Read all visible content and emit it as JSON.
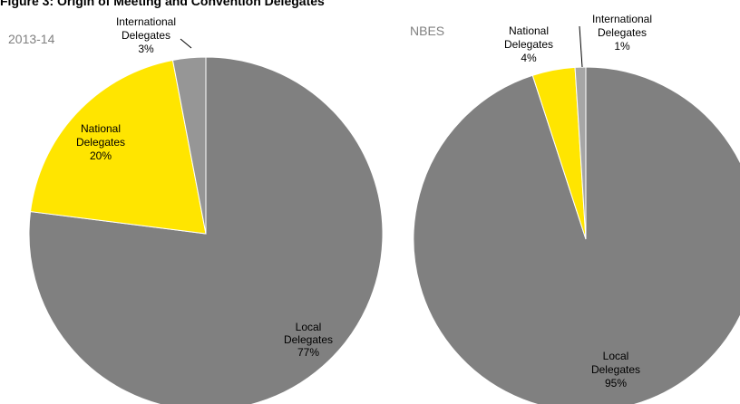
{
  "header": {
    "title": "Figure 3: Origin of Meeting and Convention Delegates"
  },
  "chart_data": [
    {
      "type": "pie",
      "title": "2013-14",
      "slices": [
        {
          "label": [
            "Local",
            "Delegates"
          ],
          "value": 77,
          "pct_label": "77%",
          "color": "#808080"
        },
        {
          "label": [
            "National",
            "Delegates"
          ],
          "value": 20,
          "pct_label": "20%",
          "color": "#FFE500"
        },
        {
          "label": [
            "International",
            "Delegates"
          ],
          "value": 3,
          "pct_label": "3%",
          "color": "#969696"
        }
      ],
      "start": "12 o'clock",
      "direction": "clockwise",
      "legend": "none (data labels)"
    },
    {
      "type": "pie",
      "title": "NBES",
      "slices": [
        {
          "label": [
            "Local",
            "Delegates"
          ],
          "value": 95,
          "pct_label": "95%",
          "color": "#808080"
        },
        {
          "label": [
            "National",
            "Delegates"
          ],
          "value": 4,
          "pct_label": "4%",
          "color": "#FFE500"
        },
        {
          "label": [
            "International",
            "Delegates"
          ],
          "value": 1,
          "pct_label": "1%",
          "color": "#A6A6A6"
        }
      ],
      "start": "12 o'clock",
      "direction": "clockwise",
      "legend": "none (data labels)"
    }
  ]
}
